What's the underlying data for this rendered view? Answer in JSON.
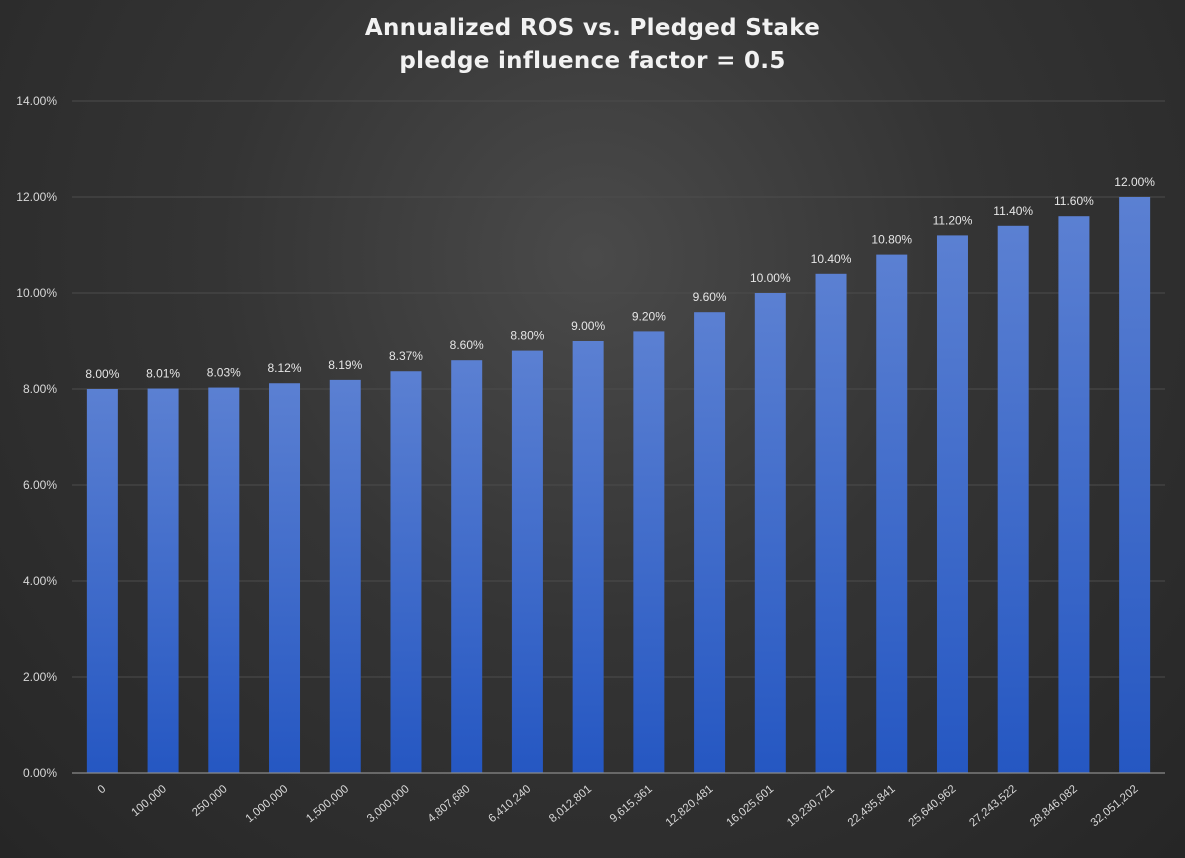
{
  "chart_data": {
    "type": "bar",
    "title": "Annualized ROS vs. Pledged Stake",
    "subtitle": "pledge influence factor = 0.5",
    "xlabel": "",
    "ylabel": "",
    "ylim": [
      0,
      14
    ],
    "y_ticks": [
      "0.00%",
      "2.00%",
      "4.00%",
      "6.00%",
      "8.00%",
      "10.00%",
      "12.00%",
      "14.00%"
    ],
    "y_tick_values": [
      0,
      2,
      4,
      6,
      8,
      10,
      12,
      14
    ],
    "grid": true,
    "legend": "none",
    "bar_color": "#3f6fd0",
    "categories": [
      "0",
      "100,000",
      "250,000",
      "1,000,000",
      "1,500,000",
      "3,000,000",
      "4,807,680",
      "6,410,240",
      "8,012,801",
      "9,615,361",
      "12,820,481",
      "16,025,601",
      "19,230,721",
      "22,435,841",
      "25,640,962",
      "27,243,522",
      "28,846,082",
      "32,051,202"
    ],
    "values": [
      8.0,
      8.01,
      8.03,
      8.12,
      8.19,
      8.37,
      8.6,
      8.8,
      9.0,
      9.2,
      9.6,
      10.0,
      10.4,
      10.8,
      11.2,
      11.4,
      11.6,
      12.0
    ],
    "data_labels": [
      "8.00%",
      "8.01%",
      "8.03%",
      "8.12%",
      "8.19%",
      "8.37%",
      "8.60%",
      "8.80%",
      "9.00%",
      "9.20%",
      "9.60%",
      "10.00%",
      "10.40%",
      "10.80%",
      "11.20%",
      "11.40%",
      "11.60%",
      "12.00%"
    ]
  }
}
